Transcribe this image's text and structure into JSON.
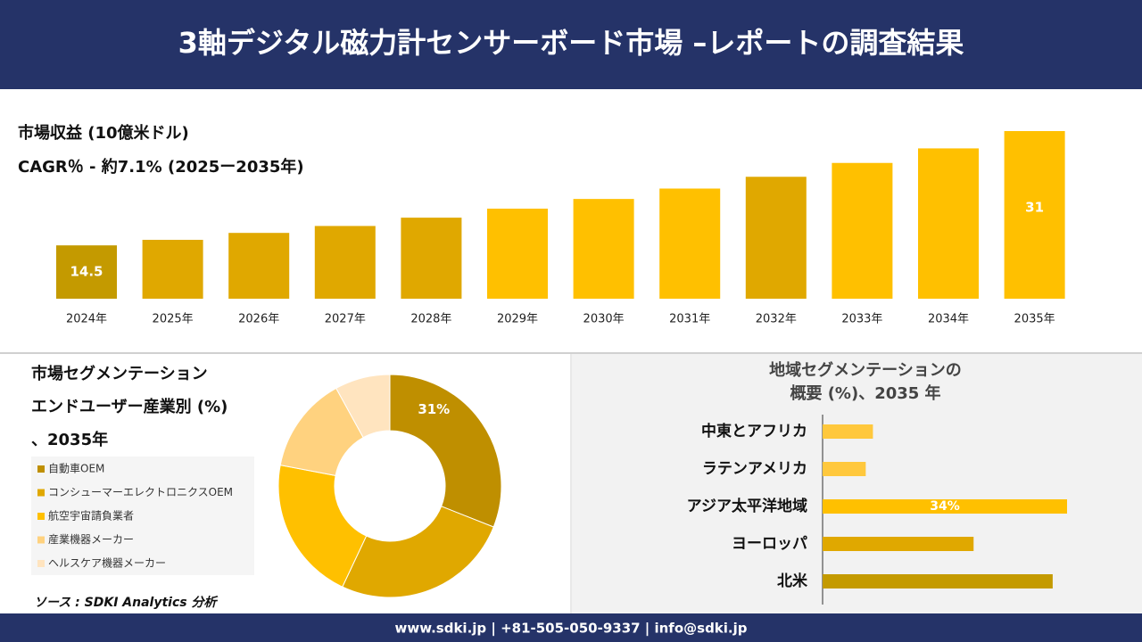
{
  "header": {
    "title": "3軸デジタル磁力計センサーボード市場 –レポートの調査結果"
  },
  "chart_data": [
    {
      "type": "bar",
      "title": "市場収益 (10億米ドル)",
      "subtitle": "CAGR％ - 約7.1% (2025ー2035年)",
      "categories": [
        "2024年",
        "2025年",
        "2026年",
        "2027年",
        "2028年",
        "2029年",
        "2030年",
        "2031年",
        "2032年",
        "2033年",
        "2034年",
        "2035年"
      ],
      "values": [
        14.5,
        15.3,
        16.3,
        17.3,
        18.5,
        19.8,
        21.2,
        22.7,
        24.4,
        26.4,
        28.5,
        31
      ],
      "value_labels": [
        "14.5",
        null,
        null,
        null,
        null,
        null,
        null,
        null,
        null,
        null,
        null,
        "31"
      ],
      "colors": [
        "#c49a00",
        "#e0a800",
        "#e0a800",
        "#e0a800",
        "#e0a800",
        "#ffc000",
        "#ffc000",
        "#ffc000",
        "#e0a800",
        "#ffc000",
        "#ffc000",
        "#ffc000"
      ],
      "ylim": [
        6.8,
        31
      ]
    },
    {
      "type": "donut",
      "title_lines": [
        "市場セグメンテーション",
        "エンドユーザー産業別 (%)",
        "、2035年"
      ],
      "categories": [
        "自動車OEM",
        "コンシューマーエレクトロニクスOEM",
        "航空宇宙請負業者",
        "産業機器メーカー",
        "ヘルスケア機器メーカー"
      ],
      "values": [
        31,
        26,
        21,
        14,
        8
      ],
      "value_labels": [
        "31%",
        null,
        null,
        null,
        null
      ],
      "colors": [
        "#bf8f00",
        "#e0a800",
        "#ffc000",
        "#ffd27f",
        "#ffe4bf"
      ]
    },
    {
      "type": "bar",
      "orientation": "horizontal",
      "title_lines": [
        "地域セグメンテーションの",
        "概要 (%)、2035 年"
      ],
      "categories": [
        "中東とアフリカ",
        "ラテンアメリカ",
        "アジア太平洋地域",
        "ヨーロッパ",
        "北米"
      ],
      "values": [
        7,
        6,
        34,
        21,
        32
      ],
      "value_labels": [
        null,
        null,
        "34%",
        null,
        null
      ],
      "colors": [
        "#ffc83d",
        "#ffc83d",
        "#ffc000",
        "#e0a800",
        "#c49a00"
      ],
      "xlim": [
        0,
        34
      ]
    }
  ],
  "source": "ソース : SDKI Analytics 分析",
  "footer": {
    "contact": "www.sdki.jp | +81-505-050-9337 | info@sdki.jp"
  }
}
